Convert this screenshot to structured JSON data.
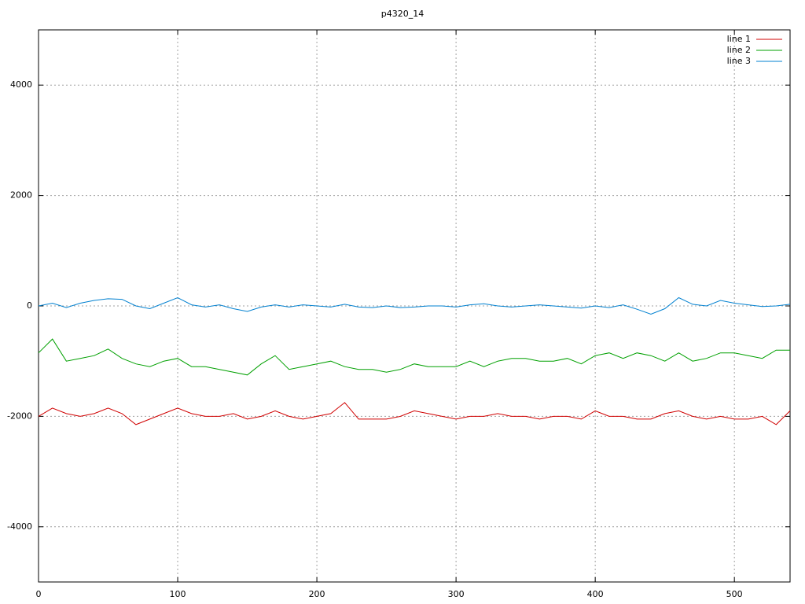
{
  "chart_data": {
    "type": "line",
    "title": "p4320_14",
    "x": [
      0,
      10,
      20,
      30,
      40,
      50,
      60,
      70,
      80,
      90,
      100,
      110,
      120,
      130,
      140,
      150,
      160,
      170,
      180,
      190,
      200,
      210,
      220,
      230,
      240,
      250,
      260,
      270,
      280,
      290,
      300,
      310,
      320,
      330,
      340,
      350,
      360,
      370,
      380,
      390,
      400,
      410,
      420,
      430,
      440,
      450,
      460,
      470,
      480,
      490,
      500,
      510,
      520,
      530,
      540
    ],
    "series": [
      {
        "name": "line 1",
        "color": "#d00000",
        "values": [
          -2000,
          -1850,
          -1950,
          -2000,
          -1950,
          -1850,
          -1950,
          -2150,
          -2050,
          -1950,
          -1850,
          -1950,
          -2000,
          -2000,
          -1950,
          -2050,
          -2000,
          -1900,
          -2000,
          -2050,
          -2000,
          -1950,
          -1750,
          -2050,
          -2050,
          -2050,
          -2000,
          -1900,
          -1950,
          -2000,
          -2050,
          -2000,
          -2000,
          -1950,
          -2000,
          -2000,
          -2050,
          -2000,
          -2000,
          -2050,
          -1900,
          -2000,
          -2000,
          -2050,
          -2050,
          -1950,
          -1900,
          -2000,
          -2050,
          -2000,
          -2050,
          -2050,
          -2000,
          -2150,
          -1900
        ]
      },
      {
        "name": "line 2",
        "color": "#00a000",
        "values": [
          -850,
          -600,
          -1000,
          -950,
          -900,
          -780,
          -950,
          -1050,
          -1100,
          -1000,
          -950,
          -1100,
          -1100,
          -1150,
          -1200,
          -1250,
          -1050,
          -900,
          -1150,
          -1100,
          -1050,
          -1000,
          -1100,
          -1150,
          -1150,
          -1200,
          -1150,
          -1050,
          -1100,
          -1100,
          -1100,
          -1000,
          -1100,
          -1000,
          -950,
          -950,
          -1000,
          -1000,
          -950,
          -1050,
          -900,
          -850,
          -950,
          -850,
          -900,
          -1000,
          -850,
          -1000,
          -950,
          -850,
          -850,
          -900,
          -950,
          -800,
          -800
        ]
      },
      {
        "name": "line 3",
        "color": "#0080d0",
        "values": [
          0,
          50,
          -30,
          50,
          100,
          130,
          120,
          0,
          -50,
          50,
          150,
          20,
          -20,
          20,
          -50,
          -100,
          -20,
          20,
          -20,
          20,
          0,
          -20,
          30,
          -20,
          -30,
          0,
          -30,
          -20,
          0,
          0,
          -20,
          20,
          40,
          0,
          -20,
          0,
          20,
          0,
          -20,
          -40,
          0,
          -30,
          20,
          -60,
          -150,
          -50,
          150,
          30,
          0,
          100,
          50,
          20,
          -10,
          0,
          30
        ]
      }
    ],
    "xlim": [
      0,
      540
    ],
    "xticks": [
      0,
      100,
      200,
      300,
      400,
      500
    ],
    "ylim": [
      -5000,
      5000
    ],
    "yticks": [
      -4000,
      -2000,
      0,
      2000,
      4000
    ],
    "grid": true,
    "legend": "top-right"
  }
}
